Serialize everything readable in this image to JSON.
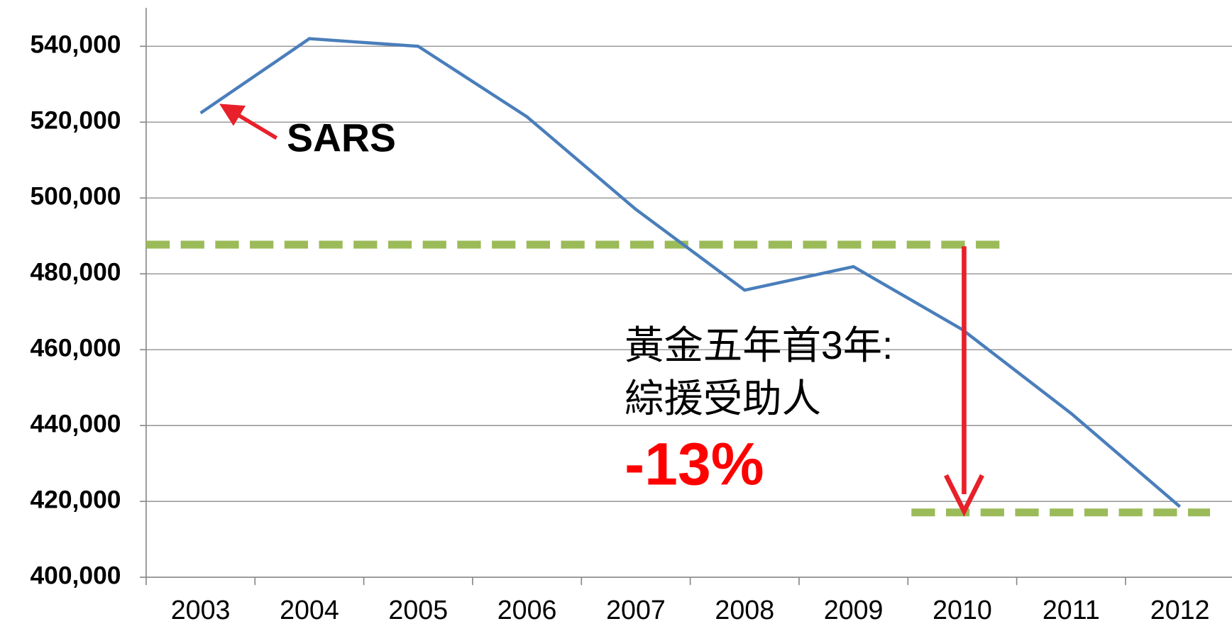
{
  "chart_data": {
    "type": "line",
    "categories": [
      "2003",
      "2004",
      "2005",
      "2006",
      "2007",
      "2008",
      "2009",
      "2010",
      "2011",
      "2012"
    ],
    "series": [
      {
        "name": null,
        "color": "#4a7ebb",
        "values": [
          522400,
          542000,
          540000,
          521400,
          497000,
          475700,
          481900,
          465300,
          443200,
          418600
        ]
      }
    ],
    "ylim": [
      400000,
      550000
    ],
    "yticks": [
      {
        "value": 400000,
        "label": "400,000"
      },
      {
        "value": 420000,
        "label": "420,000"
      },
      {
        "value": 440000,
        "label": "440,000"
      },
      {
        "value": 460000,
        "label": "460,000"
      },
      {
        "value": 480000,
        "label": "480,000"
      },
      {
        "value": 500000,
        "label": "500,000"
      },
      {
        "value": 520000,
        "label": "520,000"
      },
      {
        "value": 540000,
        "label": "540,000"
      }
    ],
    "grid": true,
    "reference_lines": [
      {
        "value": 487700,
        "color": "#9bbb59"
      },
      {
        "value": 417100,
        "color": "#9bbb59"
      }
    ],
    "annotations": [
      "SARS",
      "黃金五年首3年:",
      "綜援受助人",
      "-13%"
    ]
  }
}
